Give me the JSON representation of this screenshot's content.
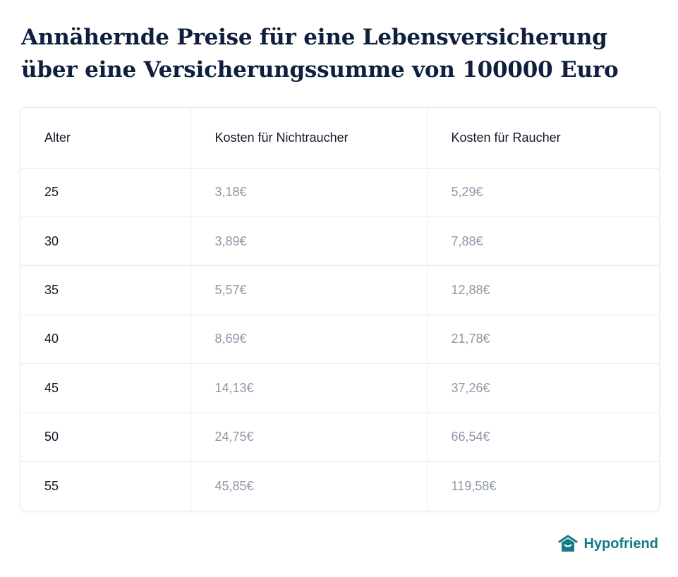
{
  "title": "Annähernde Preise für eine Lebensversicherung über eine Versicherungssumme von 100000 Euro",
  "table": {
    "headers": [
      "Alter",
      "Kosten für Nichtraucher",
      "Kosten für Raucher"
    ],
    "rows": [
      {
        "age": "25",
        "non_smoker": "3,18€",
        "smoker": "5,29€"
      },
      {
        "age": "30",
        "non_smoker": "3,89€",
        "smoker": "7,88€"
      },
      {
        "age": "35",
        "non_smoker": "5,57€",
        "smoker": "12,88€"
      },
      {
        "age": "40",
        "non_smoker": "8,69€",
        "smoker": "21,78€"
      },
      {
        "age": "45",
        "non_smoker": "14,13€",
        "smoker": "37,26€"
      },
      {
        "age": "50",
        "non_smoker": "24,75€",
        "smoker": "66,54€"
      },
      {
        "age": "55",
        "non_smoker": "45,85€",
        "smoker": "119,58€"
      }
    ]
  },
  "brand": {
    "name": "Hypofriend",
    "icon": "house-logo-icon",
    "color": "#137a86"
  }
}
